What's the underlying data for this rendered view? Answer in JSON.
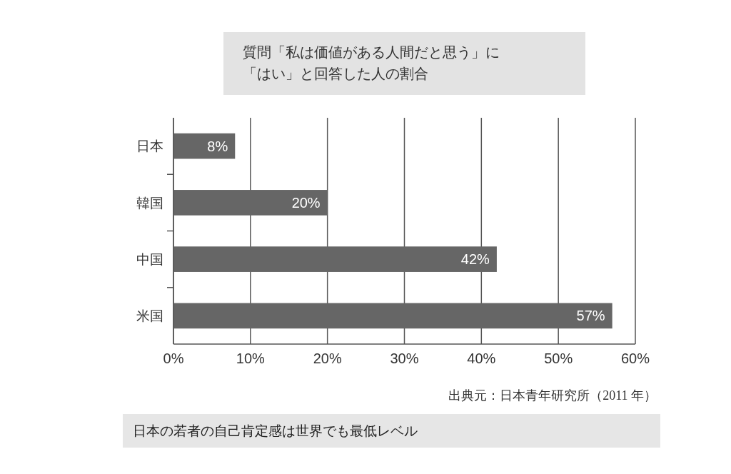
{
  "chart_data": {
    "type": "bar",
    "orientation": "horizontal",
    "title": "質問「私は価値がある人間だと思う」に「はい」と回答した人の割合",
    "categories": [
      "日本",
      "韓国",
      "中国",
      "米国"
    ],
    "values": [
      8,
      20,
      42,
      57
    ],
    "color": "#666666",
    "value_labels": [
      "8%",
      "20%",
      "42%",
      "57%"
    ],
    "xlim": [
      0,
      60
    ],
    "xticks": [
      {
        "value": 0,
        "label": "0%"
      },
      {
        "value": 10,
        "label": "10%"
      },
      {
        "value": 20,
        "label": "20%"
      },
      {
        "value": 30,
        "label": "30%"
      },
      {
        "value": 40,
        "label": "40%"
      },
      {
        "value": 50,
        "label": "50%"
      },
      {
        "value": 60,
        "label": "60%"
      }
    ],
    "grid": "x",
    "annotations": [
      "出典元：日本青年研究所（2011 年）",
      "日本の若者の自己肯定感は世界でも最低レベル"
    ]
  }
}
